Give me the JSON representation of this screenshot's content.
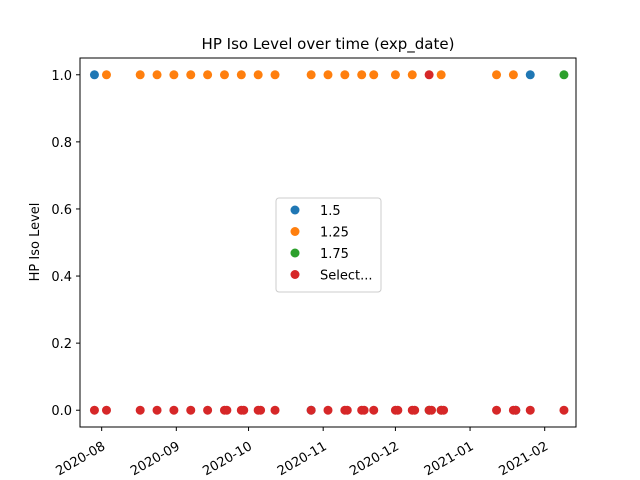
{
  "chart_data": {
    "type": "scatter",
    "title": "HP Iso Level over time (exp_date)",
    "xlabel": "",
    "ylabel": "HP Iso Level",
    "xlim": [
      "2020-07-23",
      "2021-02-14"
    ],
    "ylim": [
      -0.05,
      1.05
    ],
    "x_ticks": [
      "2020-08",
      "2020-09",
      "2020-10",
      "2020-11",
      "2020-12",
      "2021-01",
      "2021-02"
    ],
    "x_tick_dates": [
      "2020-08-01",
      "2020-09-01",
      "2020-10-01",
      "2020-11-01",
      "2020-12-01",
      "2021-01-01",
      "2021-02-01"
    ],
    "y_ticks": [
      "0.0",
      "0.2",
      "0.4",
      "0.6",
      "0.8",
      "1.0"
    ],
    "y_tick_values": [
      0.0,
      0.2,
      0.4,
      0.6,
      0.8,
      1.0
    ],
    "grid": false,
    "legend_position": "center",
    "series": [
      {
        "name": "1.5",
        "color": "#1f77b4",
        "points": [
          [
            "2020-07-29",
            1
          ],
          [
            "2020-10-27",
            0
          ],
          [
            "2021-01-20",
            0
          ],
          [
            "2021-01-26",
            1
          ]
        ]
      },
      {
        "name": "1.25",
        "color": "#ff7f0e",
        "points": [
          [
            "2020-08-03",
            1
          ],
          [
            "2020-08-17",
            1
          ],
          [
            "2020-08-24",
            1
          ],
          [
            "2020-08-31",
            1
          ],
          [
            "2020-09-07",
            1
          ],
          [
            "2020-09-14",
            1
          ],
          [
            "2020-09-21",
            1
          ],
          [
            "2020-09-28",
            1
          ],
          [
            "2020-10-05",
            1
          ],
          [
            "2020-10-12",
            1
          ],
          [
            "2020-10-27",
            1
          ],
          [
            "2020-11-03",
            1
          ],
          [
            "2020-11-10",
            1
          ],
          [
            "2020-11-17",
            1
          ],
          [
            "2020-11-22",
            1
          ],
          [
            "2020-12-01",
            1
          ],
          [
            "2020-12-08",
            1
          ],
          [
            "2020-12-20",
            1
          ],
          [
            "2021-01-12",
            1
          ],
          [
            "2021-01-19",
            1
          ]
        ]
      },
      {
        "name": "1.75",
        "color": "#2ca02c",
        "points": [
          [
            "2021-02-09",
            1
          ],
          [
            "2020-12-15",
            0
          ],
          [
            "2020-12-20",
            0
          ]
        ]
      },
      {
        "name": "Select...",
        "color": "#d62728",
        "points": [
          [
            "2020-07-29",
            0
          ],
          [
            "2020-08-03",
            0
          ],
          [
            "2020-08-17",
            0
          ],
          [
            "2020-08-24",
            0
          ],
          [
            "2020-08-31",
            0
          ],
          [
            "2020-09-07",
            0
          ],
          [
            "2020-09-14",
            0
          ],
          [
            "2020-09-21",
            0
          ],
          [
            "2020-09-22",
            0
          ],
          [
            "2020-09-28",
            0
          ],
          [
            "2020-09-29",
            0
          ],
          [
            "2020-10-05",
            0
          ],
          [
            "2020-10-06",
            0
          ],
          [
            "2020-10-12",
            0
          ],
          [
            "2020-10-27",
            0
          ],
          [
            "2020-11-03",
            0
          ],
          [
            "2020-11-10",
            0
          ],
          [
            "2020-11-11",
            0
          ],
          [
            "2020-11-17",
            0
          ],
          [
            "2020-11-18",
            0
          ],
          [
            "2020-11-22",
            0
          ],
          [
            "2020-12-01",
            0
          ],
          [
            "2020-12-02",
            0
          ],
          [
            "2020-12-08",
            0
          ],
          [
            "2020-12-09",
            0
          ],
          [
            "2020-12-15",
            1
          ],
          [
            "2020-12-15",
            0
          ],
          [
            "2020-12-16",
            0
          ],
          [
            "2020-12-20",
            0
          ],
          [
            "2020-12-21",
            0
          ],
          [
            "2021-01-12",
            0
          ],
          [
            "2021-01-19",
            0
          ],
          [
            "2021-01-20",
            0
          ],
          [
            "2021-01-26",
            0
          ],
          [
            "2021-02-09",
            0
          ]
        ]
      }
    ]
  }
}
